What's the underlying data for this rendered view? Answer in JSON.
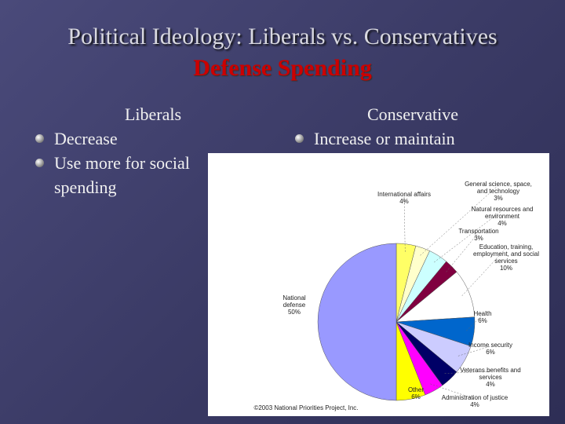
{
  "slide": {
    "title": "Political Ideology: Liberals vs. Conservatives",
    "subtitle": "Defense Spending",
    "columns": [
      {
        "heading": "Liberals",
        "bullets": [
          "Decrease",
          "Use more for social spending"
        ]
      },
      {
        "heading": "Conservative",
        "bullets": [
          "Increase or maintain"
        ]
      }
    ]
  },
  "chart_data": {
    "type": "pie",
    "categories": [
      "International affairs",
      "General science, space, and technology",
      "Natural resources and environment",
      "Transportation",
      "Education, training, employment, and social services",
      "Health",
      "Income security",
      "Veterans benefits and services",
      "Administration of justice",
      "Other",
      "National defense"
    ],
    "values": [
      4,
      3,
      4,
      3,
      10,
      6,
      6,
      4,
      4,
      6,
      50
    ],
    "value_labels": [
      "4%",
      "3%",
      "4%",
      "3%",
      "10%",
      "6%",
      "6%",
      "4%",
      "4%",
      "6%",
      "50%"
    ],
    "colors": [
      "#ffff66",
      "#ffffcc",
      "#ccffff",
      "#800040",
      "#ffffff",
      "#0066cc",
      "#ccccff",
      "#000066",
      "#ff00ff",
      "#ffff00",
      "#9999ff"
    ],
    "source": "©2003 National Priorities Project, Inc."
  }
}
